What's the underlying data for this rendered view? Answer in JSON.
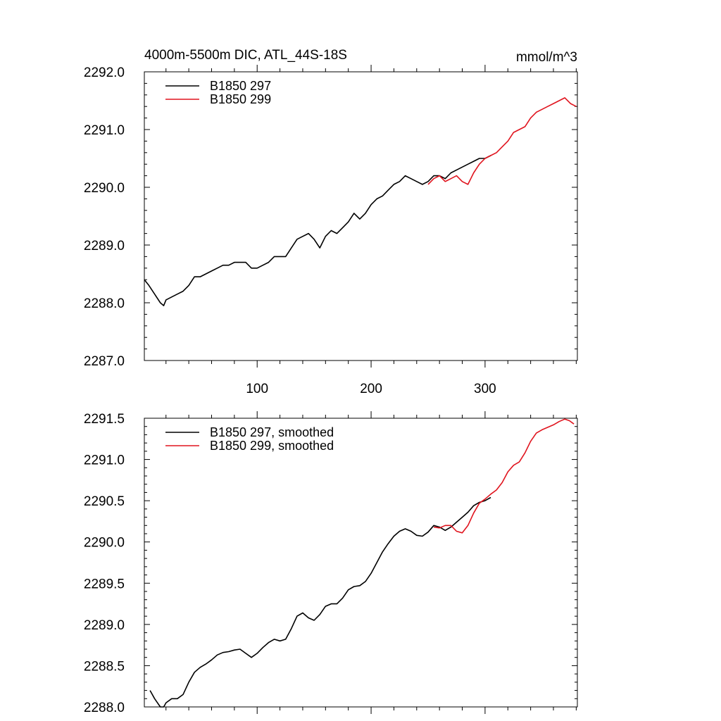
{
  "chart_data": [
    {
      "type": "line",
      "title": "4000m-5500m DIC, ATL_44S-18S",
      "units_label": "mmol/m^3",
      "xlim": [
        1,
        381
      ],
      "ylim": [
        2287.0,
        2292.0
      ],
      "x_ticks": [
        100,
        200,
        300
      ],
      "y_ticks": [
        2287.0,
        2288.0,
        2289.0,
        2290.0,
        2291.0,
        2292.0
      ],
      "y_tick_labels": [
        "2287.0",
        "2288.0",
        "2289.0",
        "2290.0",
        "2291.0",
        "2292.0"
      ],
      "legend_position": "top-left",
      "series": [
        {
          "name": "B1850 297",
          "color": "#000000",
          "x": [
            1,
            5,
            10,
            15,
            18,
            20,
            25,
            30,
            35,
            40,
            45,
            50,
            55,
            60,
            65,
            70,
            75,
            80,
            85,
            90,
            95,
            100,
            105,
            110,
            115,
            120,
            125,
            130,
            135,
            140,
            145,
            150,
            155,
            160,
            165,
            170,
            175,
            180,
            185,
            190,
            195,
            200,
            205,
            210,
            215,
            220,
            225,
            230,
            235,
            240,
            245,
            250,
            255,
            260,
            265,
            270,
            275,
            280,
            285,
            290,
            295,
            300,
            305
          ],
          "y": [
            2288.4,
            2288.3,
            2288.15,
            2288.0,
            2287.95,
            2288.05,
            2288.1,
            2288.15,
            2288.2,
            2288.3,
            2288.45,
            2288.45,
            2288.5,
            2288.55,
            2288.6,
            2288.65,
            2288.65,
            2288.7,
            2288.7,
            2288.7,
            2288.6,
            2288.6,
            2288.65,
            2288.7,
            2288.8,
            2288.8,
            2288.8,
            2288.95,
            2289.1,
            2289.15,
            2289.2,
            2289.1,
            2288.95,
            2289.15,
            2289.25,
            2289.2,
            2289.3,
            2289.4,
            2289.55,
            2289.45,
            2289.55,
            2289.7,
            2289.8,
            2289.85,
            2289.95,
            2290.05,
            2290.1,
            2290.2,
            2290.15,
            2290.1,
            2290.05,
            2290.1,
            2290.2,
            2290.2,
            2290.15,
            2290.25,
            2290.3,
            2290.35,
            2290.4,
            2290.45,
            2290.5,
            2290.5,
            2290.55
          ]
        },
        {
          "name": "B1850 299",
          "color": "#e0141e",
          "x": [
            250,
            255,
            260,
            265,
            270,
            275,
            280,
            285,
            290,
            295,
            300,
            305,
            310,
            315,
            320,
            325,
            330,
            335,
            340,
            345,
            350,
            355,
            360,
            365,
            370,
            375,
            380
          ],
          "y": [
            2290.05,
            2290.15,
            2290.2,
            2290.1,
            2290.15,
            2290.2,
            2290.1,
            2290.05,
            2290.25,
            2290.4,
            2290.5,
            2290.55,
            2290.6,
            2290.7,
            2290.8,
            2290.95,
            2291.0,
            2291.05,
            2291.2,
            2291.3,
            2291.35,
            2291.4,
            2291.45,
            2291.5,
            2291.55,
            2291.45,
            2291.4
          ]
        }
      ]
    },
    {
      "type": "line",
      "xlim": [
        1,
        381
      ],
      "ylim": [
        2288.0,
        2291.5
      ],
      "x_ticks": [
        100,
        200,
        300
      ],
      "y_ticks": [
        2288.0,
        2288.5,
        2289.0,
        2289.5,
        2290.0,
        2290.5,
        2291.0,
        2291.5
      ],
      "y_tick_labels": [
        "2288.0",
        "2288.5",
        "2289.0",
        "2289.5",
        "2290.0",
        "2290.5",
        "2291.0",
        "2291.5"
      ],
      "legend_position": "top-left",
      "series": [
        {
          "name": "B1850 297, smoothed",
          "color": "#000000",
          "x": [
            6,
            10,
            15,
            18,
            20,
            25,
            30,
            35,
            40,
            45,
            50,
            55,
            60,
            65,
            70,
            75,
            80,
            85,
            90,
            95,
            100,
            105,
            110,
            115,
            120,
            125,
            130,
            135,
            140,
            145,
            150,
            155,
            160,
            165,
            170,
            175,
            180,
            185,
            190,
            195,
            200,
            205,
            210,
            215,
            220,
            225,
            230,
            235,
            240,
            245,
            250,
            255,
            260,
            265,
            270,
            275,
            280,
            285,
            290,
            295,
            300,
            305
          ],
          "y": [
            2288.2,
            2288.1,
            2288.0,
            2288.0,
            2288.05,
            2288.1,
            2288.1,
            2288.15,
            2288.3,
            2288.42,
            2288.48,
            2288.52,
            2288.57,
            2288.63,
            2288.66,
            2288.67,
            2288.69,
            2288.7,
            2288.65,
            2288.6,
            2288.65,
            2288.72,
            2288.78,
            2288.82,
            2288.8,
            2288.82,
            2288.95,
            2289.1,
            2289.14,
            2289.08,
            2289.05,
            2289.12,
            2289.22,
            2289.25,
            2289.25,
            2289.32,
            2289.42,
            2289.46,
            2289.47,
            2289.52,
            2289.62,
            2289.75,
            2289.88,
            2289.98,
            2290.07,
            2290.13,
            2290.16,
            2290.13,
            2290.08,
            2290.07,
            2290.12,
            2290.2,
            2290.18,
            2290.14,
            2290.18,
            2290.24,
            2290.3,
            2290.36,
            2290.44,
            2290.48,
            2290.5,
            2290.54
          ]
        },
        {
          "name": "B1850 299, smoothed",
          "color": "#e0141e",
          "x": [
            255,
            260,
            265,
            270,
            275,
            280,
            285,
            290,
            295,
            300,
            305,
            310,
            315,
            320,
            325,
            330,
            335,
            340,
            345,
            350,
            355,
            360,
            365,
            370,
            374,
            378
          ],
          "y": [
            2290.18,
            2290.17,
            2290.2,
            2290.2,
            2290.13,
            2290.11,
            2290.2,
            2290.35,
            2290.47,
            2290.52,
            2290.58,
            2290.63,
            2290.72,
            2290.85,
            2290.93,
            2290.97,
            2291.08,
            2291.22,
            2291.32,
            2291.36,
            2291.39,
            2291.42,
            2291.46,
            2291.49,
            2291.47,
            2291.43
          ]
        }
      ]
    }
  ]
}
